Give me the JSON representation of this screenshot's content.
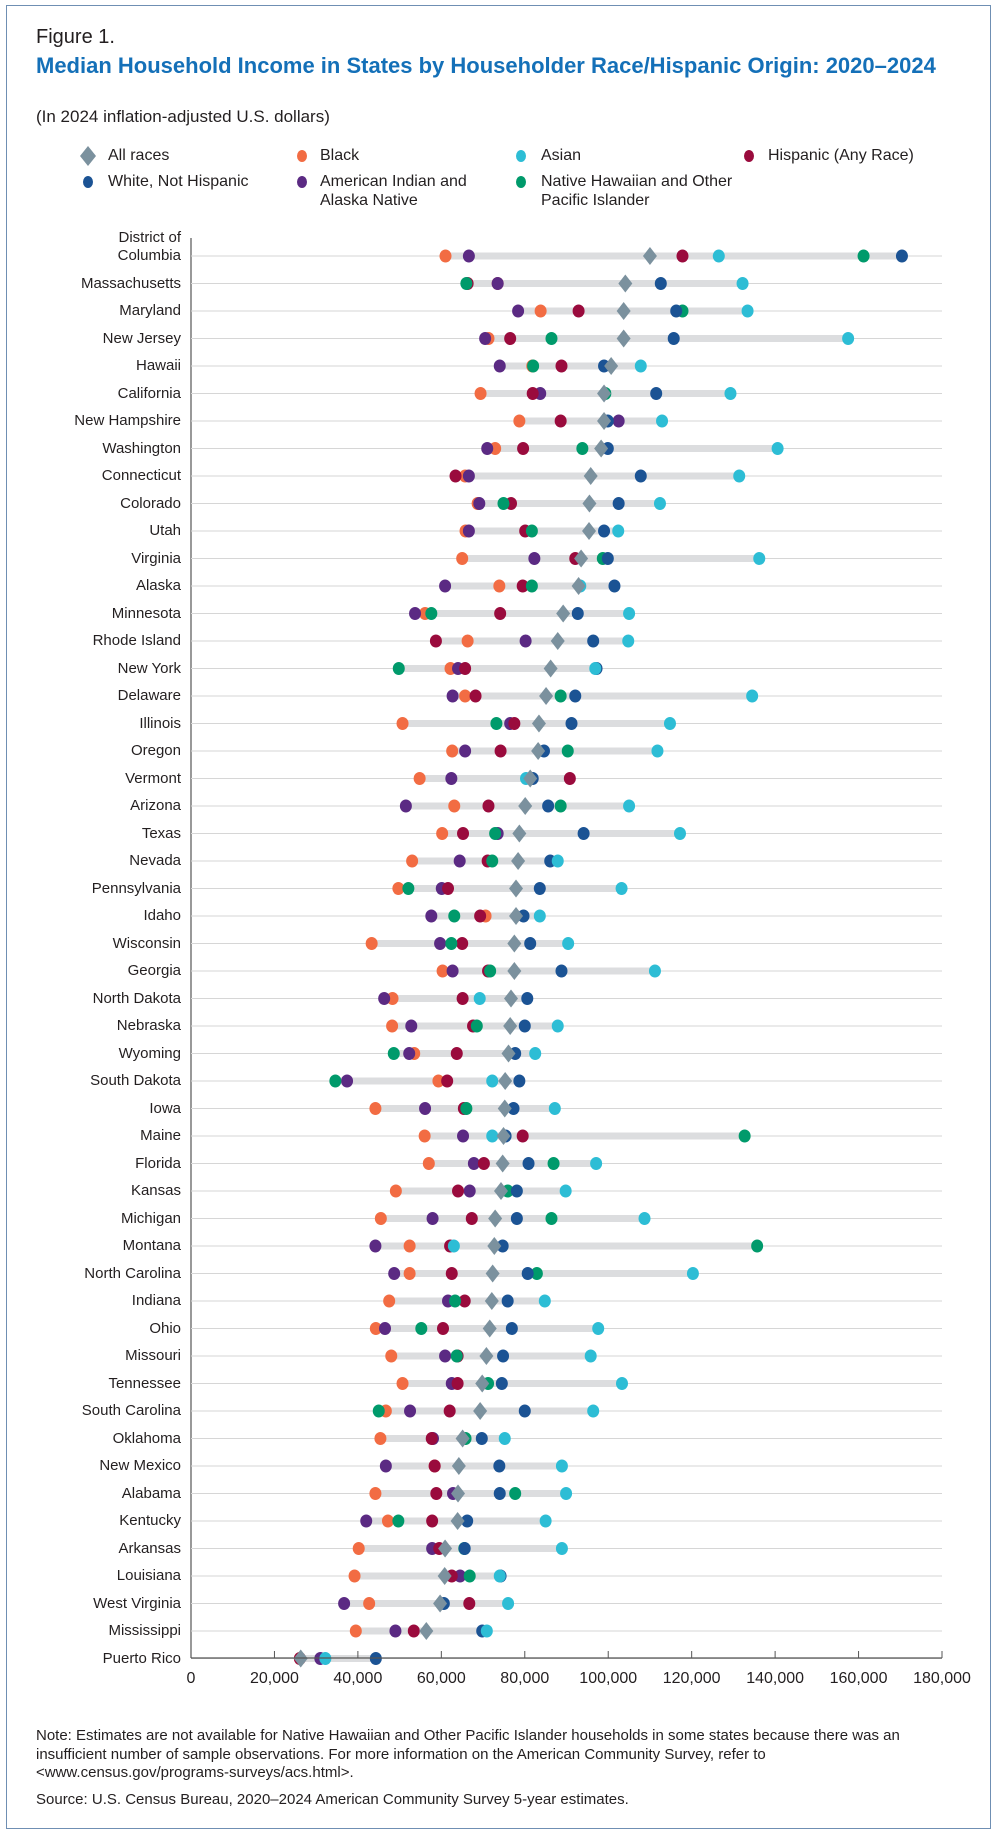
{
  "figure_label": "Figure 1.",
  "title": "Median Household Income in States by Householder Race/Hispanic Origin: 2020–2024",
  "subtitle": "(In 2024 inflation-adjusted U.S. dollars)",
  "note": "Note: Estimates are not available for Native Hawaiian and Other Pacific Islander households in some states because there was an insufficient number of sample observations. For more information on the American Community Survey, refer to <www.census.gov/programs-surveys/acs.html>.",
  "source": "Source: U.S. Census Bureau, 2020–2024 American Community Survey 5-year estimates.",
  "chart_data": {
    "type": "scatter",
    "orientation": "horizontal dot plot with range bars",
    "title": "Median Household Income in States by Householder Race/Hispanic Origin: 2020–2024",
    "subtitle": "(In 2024 inflation-adjusted U.S. dollars)",
    "xlabel": "",
    "ylabel": "",
    "xlim": [
      0,
      180000
    ],
    "xticks": [
      0,
      20000,
      40000,
      60000,
      80000,
      100000,
      120000,
      140000,
      160000,
      180000
    ],
    "xtick_labels": [
      "0",
      "20,000",
      "40,000",
      "60,000",
      "80,000",
      "100,000",
      "120,000",
      "140,000",
      "160,000",
      "180,000"
    ],
    "grid": "horizontal row lines",
    "legend_position": "top",
    "categories": [
      "District of Columbia",
      "Massachusetts",
      "Maryland",
      "New Jersey",
      "Hawaii",
      "California",
      "New Hampshire",
      "Washington",
      "Connecticut",
      "Colorado",
      "Utah",
      "Virginia",
      "Alaska",
      "Minnesota",
      "Rhode Island",
      "New York",
      "Delaware",
      "Illinois",
      "Oregon",
      "Vermont",
      "Arizona",
      "Texas",
      "Nevada",
      "Pennsylvania",
      "Idaho",
      "Wisconsin",
      "Georgia",
      "North Dakota",
      "Nebraska",
      "Wyoming",
      "South Dakota",
      "Iowa",
      "Maine",
      "Florida",
      "Kansas",
      "Michigan",
      "Montana",
      "North Carolina",
      "Indiana",
      "Ohio",
      "Missouri",
      "Tennessee",
      "South Carolina",
      "Oklahoma",
      "New Mexico",
      "Alabama",
      "Kentucky",
      "Arkansas",
      "Louisiana",
      "West Virginia",
      "Mississippi",
      "Puerto Rico"
    ],
    "series": [
      {
        "name": "Black",
        "key": "black",
        "color": "#f26c43",
        "marker": "circle",
        "values": [
          61000,
          73500,
          83800,
          71300,
          81800,
          69400,
          78700,
          72900,
          65700,
          68700,
          65800,
          65000,
          73900,
          56100,
          66300,
          62200,
          65700,
          50700,
          62600,
          54800,
          63100,
          60200,
          53000,
          49700,
          70600,
          43300,
          60300,
          48300,
          48200,
          53500,
          59300,
          44200,
          56000,
          57000,
          49100,
          45500,
          52400,
          52400,
          47500,
          44300,
          48000,
          50700,
          46700,
          45400,
          58400,
          44200,
          47200,
          40200,
          39200,
          42700,
          39500,
          26100
        ]
      },
      {
        "name": "American Indian and Alaska Native",
        "key": "aian",
        "color": "#5b2a83",
        "marker": "circle",
        "values": [
          66600,
          73500,
          78400,
          70500,
          74000,
          83700,
          102500,
          71000,
          66600,
          69100,
          66600,
          82300,
          60900,
          53700,
          80200,
          64000,
          62700,
          76500,
          65700,
          62400,
          51500,
          73500,
          64400,
          60100,
          57600,
          59700,
          62700,
          46300,
          52800,
          52300,
          37400,
          56100,
          65200,
          67800,
          66800,
          57900,
          44200,
          48700,
          61600,
          46500,
          60900,
          62500,
          52500,
          58000,
          46700,
          62800,
          42000,
          57800,
          64500,
          36700,
          49000,
          31000
        ]
      },
      {
        "name": "Hispanic (Any Race)",
        "key": "hispanic",
        "color": "#9a0b3d",
        "marker": "circle",
        "values": [
          117800,
          66300,
          92900,
          76500,
          88800,
          81900,
          88600,
          79600,
          63400,
          76700,
          80100,
          92100,
          79500,
          74100,
          58700,
          65700,
          68200,
          77500,
          74200,
          90800,
          71300,
          65200,
          71100,
          61600,
          69300,
          65000,
          71200,
          65100,
          67600,
          63700,
          61400,
          65400,
          79500,
          70200,
          64000,
          67300,
          62100,
          62500,
          65600,
          60400,
          63900,
          63900,
          62000,
          57700,
          58400,
          58800,
          57800,
          59500,
          62500,
          66700,
          53400,
          26100
        ]
      },
      {
        "name": "Native Hawaiian and Other Pacific Islander",
        "key": "nhpi",
        "color": "#009a6b",
        "marker": "circle",
        "values": [
          161200,
          66000,
          117800,
          86400,
          82000,
          99300,
          null,
          93800,
          null,
          74900,
          81700,
          98700,
          81700,
          57600,
          null,
          49800,
          88600,
          73200,
          90300,
          null,
          88600,
          72900,
          72200,
          52100,
          63100,
          62400,
          71700,
          null,
          68500,
          48600,
          34600,
          66000,
          132700,
          86900,
          75900,
          86400,
          135700,
          82900,
          63300,
          55200,
          63700,
          71200,
          45000,
          65800,
          null,
          77700,
          49700,
          65500,
          66800,
          null,
          null,
          null
        ]
      },
      {
        "name": "White, Not Hispanic",
        "key": "white",
        "color": "#1b5394",
        "marker": "circle",
        "values": [
          170400,
          112600,
          116300,
          115700,
          99000,
          111500,
          99900,
          99900,
          107800,
          102500,
          99000,
          99900,
          101500,
          92700,
          96400,
          97200,
          92100,
          91200,
          84600,
          81900,
          85600,
          94100,
          86100,
          83600,
          79700,
          81300,
          88800,
          80600,
          80000,
          77700,
          78700,
          77300,
          75400,
          80900,
          78100,
          78100,
          74700,
          80700,
          75900,
          76900,
          74800,
          74500,
          80000,
          69700,
          73900,
          74000,
          66200,
          65600,
          74200,
          60600,
          69800,
          44300
        ]
      },
      {
        "name": "Asian",
        "key": "asian",
        "color": "#2dbdd5",
        "marker": "circle",
        "values": [
          126500,
          132200,
          133400,
          157500,
          107800,
          129300,
          112900,
          140600,
          131400,
          112400,
          102400,
          136200,
          93300,
          105000,
          104800,
          96900,
          134500,
          114800,
          111800,
          80300,
          105000,
          117200,
          87900,
          103200,
          83600,
          90400,
          111200,
          69200,
          87900,
          82500,
          72200,
          87200,
          72200,
          97100,
          89800,
          108700,
          63000,
          120300,
          84800,
          97600,
          95800,
          103300,
          96400,
          75200,
          88900,
          89900,
          85000,
          88900,
          74000,
          76000,
          70900,
          32200
        ]
      },
      {
        "name": "All races",
        "key": "all",
        "color": "#7b919e",
        "marker": "diamond",
        "values": [
          110000,
          104100,
          103700,
          103700,
          100700,
          99000,
          99000,
          98300,
          95800,
          95500,
          95400,
          93500,
          92900,
          89200,
          87900,
          86200,
          85100,
          83400,
          83200,
          81300,
          80100,
          78700,
          78400,
          77900,
          77900,
          77500,
          77500,
          76700,
          76500,
          76100,
          75300,
          75200,
          74900,
          74700,
          74300,
          72900,
          72700,
          72300,
          72100,
          71600,
          70800,
          69800,
          69300,
          65100,
          64200,
          64000,
          63900,
          60900,
          60800,
          59700,
          56400,
          26300
        ]
      }
    ]
  },
  "legend": [
    {
      "label": "All races",
      "color": "#7b919e",
      "marker": "diamond"
    },
    {
      "label": "Black",
      "color": "#f26c43",
      "marker": "circle"
    },
    {
      "label": "Asian",
      "color": "#2dbdd5",
      "marker": "circle"
    },
    {
      "label": "Hispanic (Any Race)",
      "color": "#9a0b3d",
      "marker": "circle"
    },
    {
      "label": "White, Not Hispanic",
      "color": "#1b5394",
      "marker": "circle"
    },
    {
      "label": "American Indian and Alaska Native",
      "color": "#5b2a83",
      "marker": "circle"
    },
    {
      "label": "Native Hawaiian and Other Pacific Islander",
      "color": "#009a6b",
      "marker": "circle"
    }
  ],
  "colors": {
    "title": "#1470b8",
    "range_bar": "#dcdddf",
    "grid": "#d6d6d6",
    "frame": "#6f8fb3"
  }
}
